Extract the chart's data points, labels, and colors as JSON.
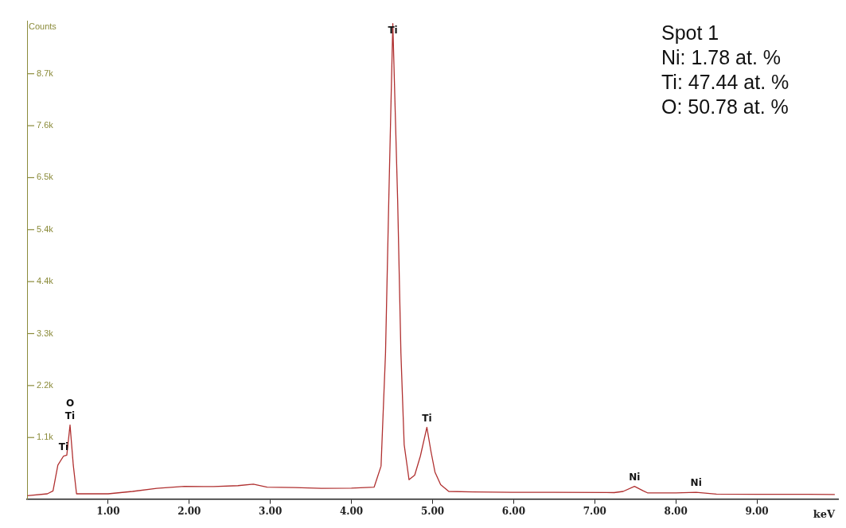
{
  "chart_data": {
    "type": "line",
    "xlabel": "keV",
    "ylabel": "Counts",
    "color": "#b03030",
    "marker": "none",
    "line_style": "solid",
    "grid": false,
    "x": [
      0.005,
      0.25,
      0.32,
      0.38,
      0.45,
      0.49,
      0.53,
      0.57,
      0.61,
      1.0,
      1.3,
      1.6,
      1.94,
      2.3,
      2.6,
      2.79,
      2.96,
      3.3,
      3.63,
      4.0,
      4.28,
      4.31,
      4.365,
      4.42,
      4.46,
      4.51,
      4.57,
      4.61,
      4.65,
      4.71,
      4.78,
      4.85,
      4.93,
      4.98,
      5.03,
      5.1,
      5.2,
      5.5,
      5.98,
      6.5,
      7.24,
      7.35,
      7.49,
      7.6,
      7.65,
      8.0,
      8.25,
      8.5,
      9.0,
      9.5,
      9.96
    ],
    "values": [
      -130,
      -90,
      -30,
      510,
      700,
      720,
      1350,
      510,
      -90,
      -90,
      -40,
      25,
      65,
      60,
      80,
      110,
      50,
      40,
      25,
      30,
      50,
      205,
      490,
      2850,
      6030,
      9750,
      6030,
      2850,
      940,
      205,
      300,
      700,
      1300,
      800,
      365,
      100,
      -40,
      -50,
      -60,
      -60,
      -65,
      -40,
      65,
      -30,
      -70,
      -70,
      -60,
      -95,
      -100,
      -100,
      -105
    ],
    "xlim": [
      0,
      10
    ],
    "xticks": [
      {
        "value": 1,
        "label": "1.00"
      },
      {
        "value": 2,
        "label": "2.00"
      },
      {
        "value": 3,
        "label": "3.00"
      },
      {
        "value": 4,
        "label": "4.00"
      },
      {
        "value": 5,
        "label": "5.00"
      },
      {
        "value": 6,
        "label": "6.00"
      },
      {
        "value": 7,
        "label": "7.00"
      },
      {
        "value": 8,
        "label": "8.00"
      },
      {
        "value": 9,
        "label": "9.00"
      }
    ],
    "ylim": [
      -200,
      9800
    ],
    "yticks": [
      {
        "value": 1087.5,
        "label": "1.1k"
      },
      {
        "value": 2175,
        "label": "2.2k"
      },
      {
        "value": 3262.5,
        "label": "3.3k"
      },
      {
        "value": 4350,
        "label": "4.4k"
      },
      {
        "value": 5437.5,
        "label": "5.4k"
      },
      {
        "value": 6525,
        "label": "6.5k"
      },
      {
        "value": 7612.5,
        "label": "7.6k"
      },
      {
        "value": 8700,
        "label": "8.7k"
      }
    ],
    "annotations": [
      "Spot 1",
      "Ni: 1.78 at. %",
      "Ti: 47.44 at. %",
      "O: 50.78 at. %",
      {
        "text": "Ti",
        "x": 0.53,
        "y": 1350
      },
      {
        "text": "O",
        "x": 0.53,
        "y": 1350
      },
      {
        "text": "Ti",
        "x": 0.45,
        "y": 700
      },
      {
        "text": "Ti",
        "x": 4.51,
        "y": 9750
      },
      {
        "text": "Ti",
        "x": 4.93,
        "y": 1300
      },
      {
        "text": "Ni",
        "x": 7.49,
        "y": 65
      },
      {
        "text": "Ni",
        "x": 8.25,
        "y": -60
      }
    ]
  }
}
